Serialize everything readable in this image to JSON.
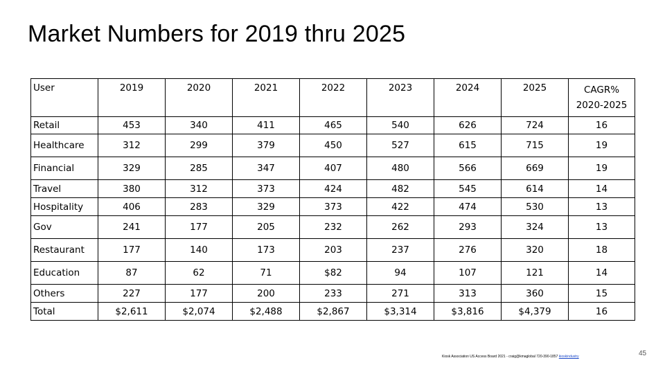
{
  "slide": {
    "title": "Market Numbers for 2019 thru 2025",
    "page_number": "45",
    "footer": {
      "text": "Kiosk Association US Access Board 2021 - craig@kmaglobal 720-390-1857",
      "link": "kioskindustry"
    }
  },
  "table": {
    "headers": [
      "User",
      "2019",
      "2020",
      "2021",
      "2022",
      "2023",
      "2024",
      "2025",
      "CAGR% 2020-2025"
    ],
    "rows": [
      [
        "Retail",
        "453",
        "340",
        "411",
        "465",
        "540",
        "626",
        "724",
        "16"
      ],
      [
        "Healthcare",
        "312",
        "299",
        "379",
        "450",
        "527",
        "615",
        "715",
        "19"
      ],
      [
        "Financial",
        "329",
        "285",
        "347",
        "407",
        "480",
        "566",
        "669",
        "19"
      ],
      [
        "Travel",
        "380",
        "312",
        "373",
        "424",
        "482",
        "545",
        "614",
        "14"
      ],
      [
        "Hospitality",
        "406",
        "283",
        "329",
        "373",
        "422",
        "474",
        "530",
        "13"
      ],
      [
        "Gov",
        "241",
        "177",
        "205",
        "232",
        "262",
        "293",
        "324",
        "13"
      ],
      [
        "Restaurant",
        "177",
        "140",
        "173",
        "203",
        "237",
        "276",
        "320",
        "18"
      ],
      [
        "Education",
        "87",
        "62",
        "71",
        "$82",
        "94",
        "107",
        "121",
        "14"
      ],
      [
        "Others",
        "227",
        "177",
        "200",
        "233",
        "271",
        "313",
        "360",
        "15"
      ],
      [
        "Total",
        "$2,611",
        "$2,074",
        "$2,488",
        "$2,867",
        "$3,314",
        "$3,816",
        "$4,379",
        "16"
      ]
    ]
  }
}
